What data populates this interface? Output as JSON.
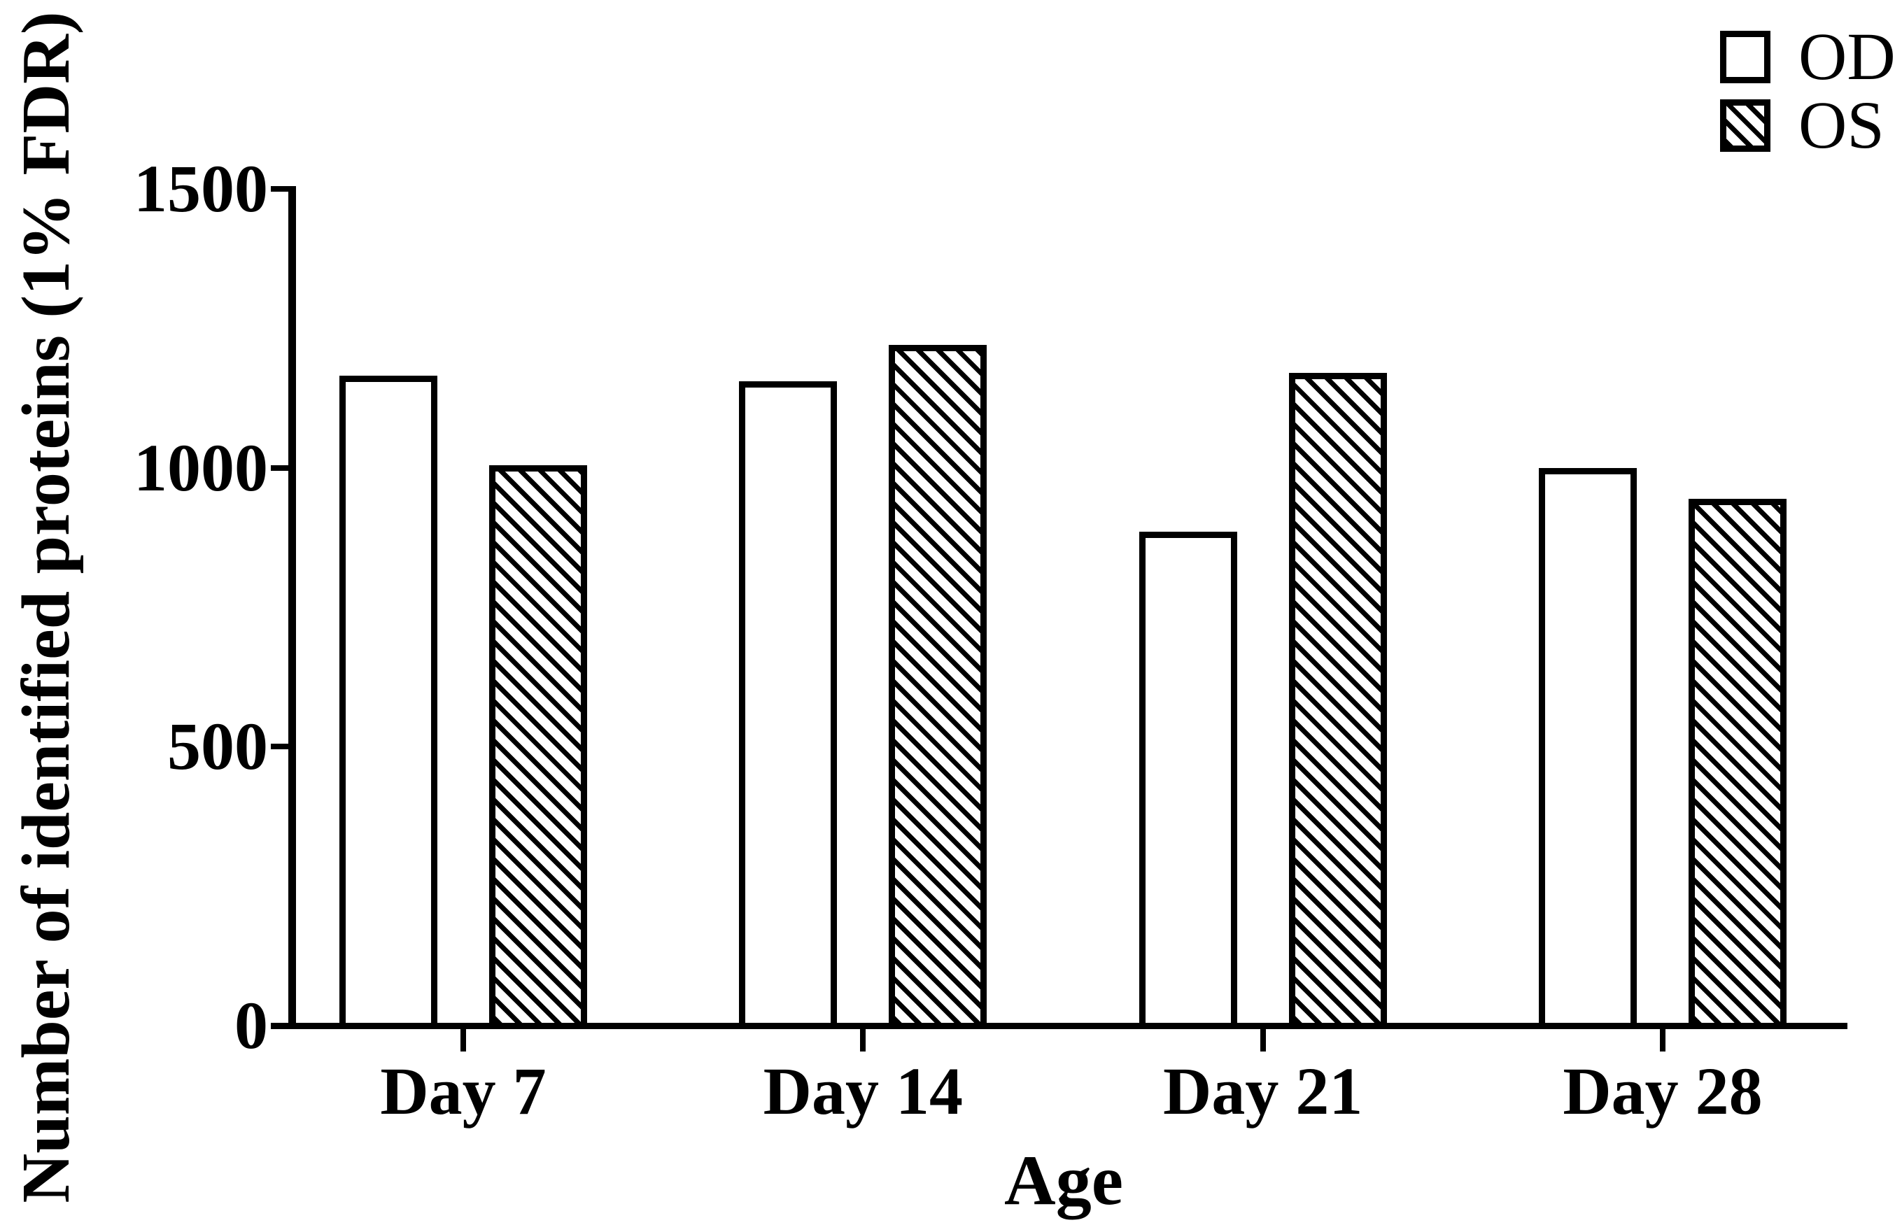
{
  "chart_data": {
    "type": "bar",
    "title": "",
    "categories": [
      "Day 7",
      "Day 14",
      "Day 21",
      "Day 28"
    ],
    "series": [
      {
        "name": "OD",
        "pattern": "open-white",
        "values": [
          1165,
          1155,
          885,
          1000
        ]
      },
      {
        "name": "OS",
        "pattern": "diagonal-hatch",
        "values": [
          1005,
          1220,
          1170,
          945
        ]
      }
    ],
    "xlabel": "Age",
    "ylabel": "Number of identified proteins (1% FDR)",
    "ylim": [
      0,
      1500
    ],
    "yticks": [
      0,
      500,
      1000,
      1500
    ],
    "legend_position": "top-right",
    "grid": false,
    "colors": {
      "foreground": "#000000",
      "background": "#ffffff"
    }
  }
}
